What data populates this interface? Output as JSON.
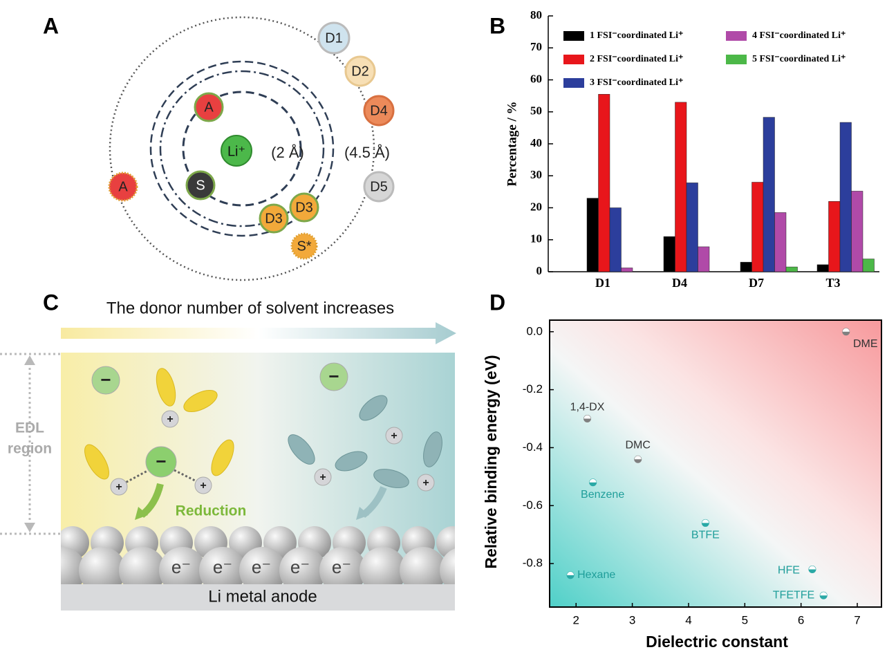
{
  "panel_letters": [
    "A",
    "B",
    "C",
    "D"
  ],
  "panel_a": {
    "center": "Li⁺",
    "inner_radius": "(2 Å)",
    "outer_radius": "(4.5 Å)",
    "species": [
      "A",
      "S",
      "D3",
      "D3",
      "S*",
      "A",
      "D1",
      "D2",
      "D4",
      "D5"
    ]
  },
  "panel_c": {
    "title": "The donor number of solvent increases",
    "edl_label": [
      "EDL",
      "region"
    ],
    "reduction": "Reduction",
    "anion_sign": "−",
    "cation_sign": "+",
    "electron": "e⁻",
    "anode": "Li metal anode"
  },
  "chart_data": [
    {
      "type": "bar",
      "ylabel": "Percentage / %",
      "categories": [
        "D1",
        "D4",
        "D7",
        "T3"
      ],
      "series": [
        {
          "name": "1 FSI⁻coordinated Li⁺",
          "color": "#000000",
          "values": [
            23,
            11,
            3,
            2.2
          ]
        },
        {
          "name": "2 FSI⁻coordinated Li⁺",
          "color": "#e8161b",
          "values": [
            55.5,
            53,
            28,
            22
          ]
        },
        {
          "name": "3 FSI⁻coordinated Li⁺",
          "color": "#2c3e9c",
          "values": [
            20,
            27.8,
            48.3,
            46.7
          ]
        },
        {
          "name": "4 FSI⁻coordinated Li⁺",
          "color": "#b04aa8",
          "values": [
            1.2,
            7.8,
            18.5,
            25.2
          ]
        },
        {
          "name": "5 FSI⁻coordinated Li⁺",
          "color": "#4cb848",
          "values": [
            0,
            0,
            1.5,
            4
          ]
        }
      ],
      "ylim": [
        0,
        80
      ],
      "yticks": [
        0,
        10,
        20,
        30,
        40,
        50,
        60,
        70,
        80
      ]
    },
    {
      "type": "scatter",
      "xlabel": "Dielectric constant",
      "ylabel": "Relative binding energy (eV)",
      "labels": [
        "DME",
        "1,4-DX",
        "DMC",
        "Benzene",
        "BTFE",
        "HFE",
        "TFETFE",
        "Hexane"
      ],
      "x": [
        6.8,
        2.2,
        3.1,
        2.3,
        4.3,
        6.2,
        6.4,
        1.9
      ],
      "values": [
        0,
        -0.3,
        -0.44,
        -0.52,
        -0.66,
        -0.82,
        -0.91,
        -0.84
      ],
      "colors": [
        "#808080",
        "#808080",
        "#808080",
        "#2aa9a6",
        "#2aa9a6",
        "#2aa9a6",
        "#2aa9a6",
        "#2aa9a6"
      ],
      "xlim": [
        1.53,
        7.43
      ],
      "ylim": [
        -0.95,
        0.04
      ],
      "xticks": [
        2,
        3,
        4,
        5,
        6,
        7
      ],
      "yticks": [
        {
          "value": 0,
          "label": "0.0"
        },
        -0.2,
        -0.4,
        -0.6,
        -0.8
      ]
    }
  ]
}
